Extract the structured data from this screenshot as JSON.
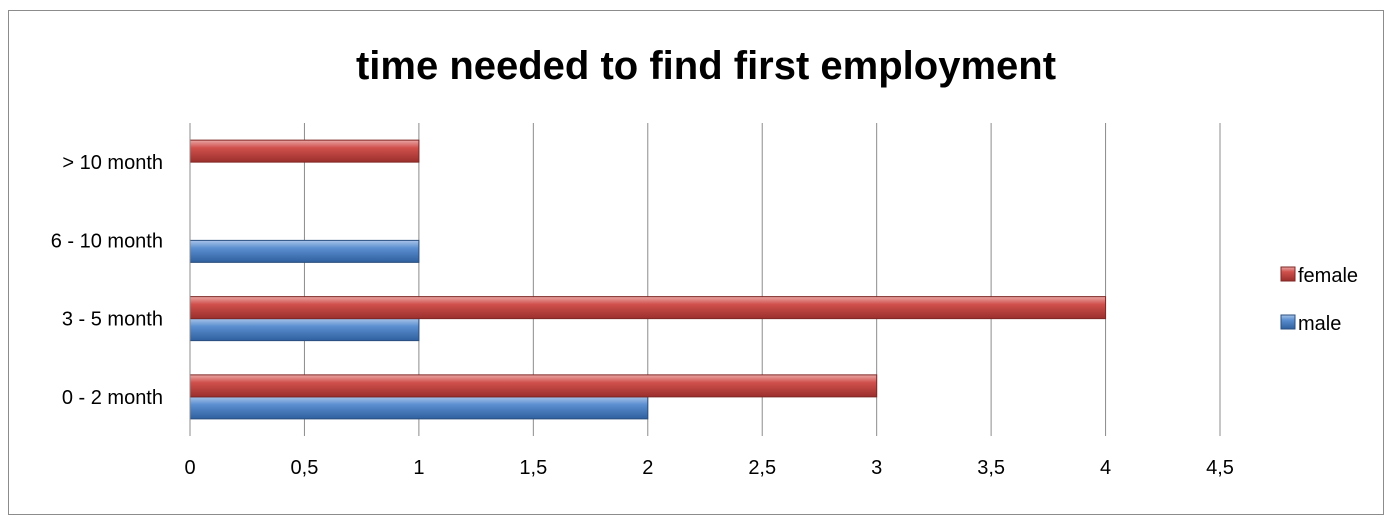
{
  "chart_data": {
    "type": "bar",
    "orientation": "horizontal",
    "title": "time needed to find first employment",
    "xlabel": "",
    "ylabel": "",
    "categories": [
      "0 - 2 month",
      "3 - 5 month",
      "6 - 10 month",
      "> 10 month"
    ],
    "series": [
      {
        "name": "male",
        "values": [
          2,
          1,
          1,
          0
        ],
        "color": "#4f81bd"
      },
      {
        "name": "female",
        "values": [
          3,
          4,
          0,
          1
        ],
        "color": "#c0504d"
      }
    ],
    "xlim": [
      0,
      4.5
    ],
    "x_ticks": [
      "0",
      "0,5",
      "1",
      "1,5",
      "2",
      "2,5",
      "3",
      "3,5",
      "4",
      "4,5"
    ],
    "grid": "vertical",
    "legend_position": "right"
  }
}
